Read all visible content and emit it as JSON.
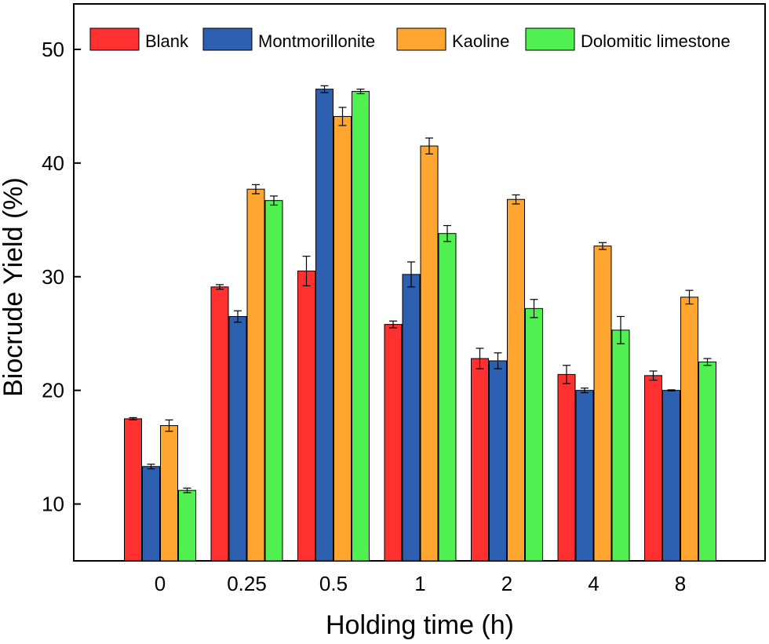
{
  "chart_data": {
    "type": "bar",
    "title": "",
    "xlabel": "Holding time (h)",
    "ylabel": "Biocrude Yield (%)",
    "categories": [
      "0",
      "0.25",
      "0.5",
      "1",
      "2",
      "4",
      "8"
    ],
    "ylim": [
      5,
      54
    ],
    "yticks": [
      10,
      20,
      30,
      40,
      50
    ],
    "grid": false,
    "legend_position": "top",
    "series": [
      {
        "name": "Blank",
        "color": "#ff3030",
        "values": [
          17.5,
          29.1,
          30.5,
          25.8,
          22.8,
          21.4,
          21.3
        ],
        "errors": [
          0.1,
          0.2,
          1.3,
          0.3,
          0.9,
          0.8,
          0.4
        ]
      },
      {
        "name": "Montmorillonite",
        "color": "#2c5fb0",
        "values": [
          13.3,
          26.5,
          46.5,
          30.2,
          22.6,
          20.0,
          20.0
        ],
        "errors": [
          0.2,
          0.5,
          0.3,
          1.1,
          0.7,
          0.2,
          0.05
        ]
      },
      {
        "name": "Kaoline",
        "color": "#ffa530",
        "values": [
          16.9,
          37.7,
          44.1,
          41.5,
          36.8,
          32.7,
          28.2
        ],
        "errors": [
          0.5,
          0.4,
          0.8,
          0.7,
          0.4,
          0.3,
          0.6
        ]
      },
      {
        "name": "Dolomitic limestone",
        "color": "#50f050",
        "values": [
          11.2,
          36.7,
          46.3,
          33.8,
          27.2,
          25.3,
          22.5
        ],
        "errors": [
          0.2,
          0.4,
          0.2,
          0.7,
          0.8,
          1.2,
          0.3
        ]
      }
    ]
  }
}
